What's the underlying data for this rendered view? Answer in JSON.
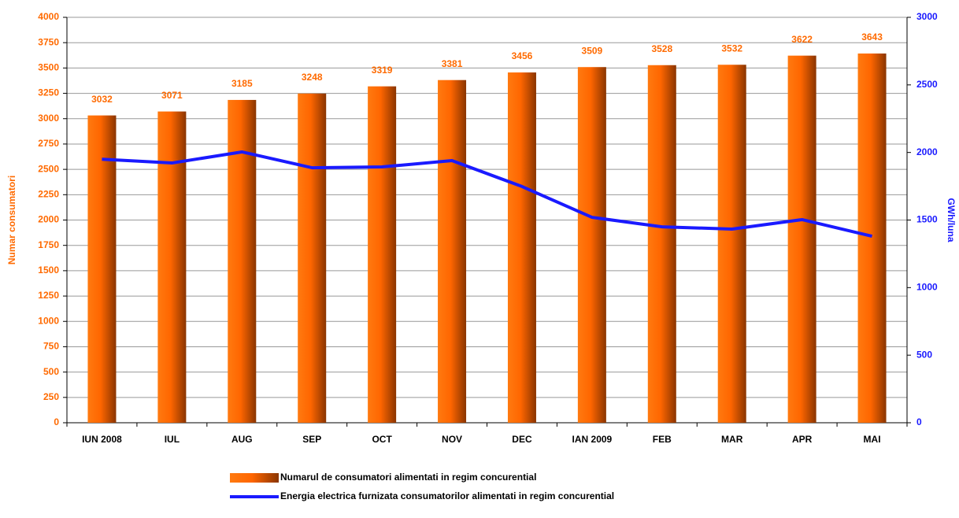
{
  "chart_data": {
    "type": "bar",
    "categories": [
      "IUN 2008",
      "IUL",
      "AUG",
      "SEP",
      "OCT",
      "NOV",
      "DEC",
      "IAN 2009",
      "FEB",
      "MAR",
      "APR",
      "MAI"
    ],
    "series": [
      {
        "name": "Numarul de consumatori alimentati in regim concurential",
        "type": "bar",
        "color": "#ff6a00",
        "values": [
          3032,
          3071,
          3185,
          3248,
          3319,
          3381,
          3456,
          3509,
          3528,
          3532,
          3622,
          3643
        ]
      },
      {
        "name": "Energia electrica furnizata consumatorilor alimentati in regim concurential",
        "type": "line",
        "axis": "y2",
        "color": "#1a1aff",
        "values": [
          1950,
          1922,
          2004,
          1887,
          1893,
          1940,
          1748,
          1520,
          1450,
          1433,
          1503,
          1380
        ]
      }
    ],
    "ylabel": "Numar consumatori",
    "y2label": "GWh/luna",
    "ylim": [
      0,
      4000
    ],
    "yticks": [
      0,
      250,
      500,
      750,
      1000,
      1250,
      1500,
      1750,
      2000,
      2250,
      2500,
      2750,
      3000,
      3250,
      3500,
      3750,
      4000
    ],
    "y2lim": [
      0,
      3000
    ],
    "y2ticks": [
      0,
      500,
      1000,
      1500,
      2000,
      2500,
      3000
    ],
    "grid": true,
    "legend": "bottom"
  }
}
